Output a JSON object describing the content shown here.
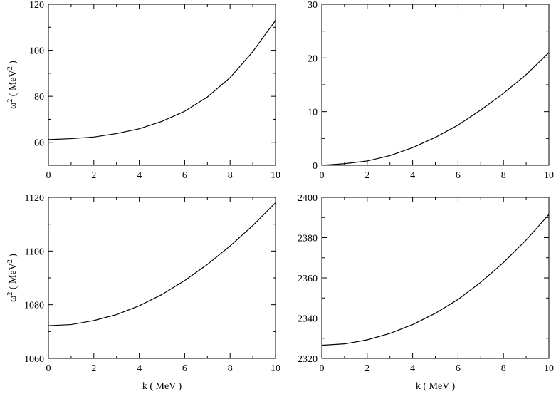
{
  "chart_data": [
    {
      "type": "line",
      "xlabel": "",
      "ylabel_main": "ω",
      "ylabel_sup": "2",
      "ylabel_unit_open": "( MeV",
      "ylabel_unit_sup": "2",
      "ylabel_unit_close": ")",
      "xlim": [
        0,
        10
      ],
      "ylim": [
        50,
        120
      ],
      "xticks": [
        "0",
        "2",
        "4",
        "6",
        "8",
        "10"
      ],
      "yticks": [
        "60",
        "80",
        "100",
        "120"
      ],
      "ytick_values": [
        60,
        80,
        100,
        120
      ],
      "series": [
        {
          "x": [
            0,
            1,
            2,
            3,
            4,
            5,
            6,
            7,
            8,
            9,
            10
          ],
          "y": [
            61.2,
            61.6,
            62.3,
            63.8,
            65.9,
            69.1,
            73.5,
            79.7,
            88.1,
            99.4,
            113.0
          ]
        }
      ]
    },
    {
      "type": "line",
      "xlabel": "",
      "ylabel_main": "",
      "xlim": [
        0,
        10
      ],
      "ylim": [
        0,
        30
      ],
      "xticks": [
        "0",
        "2",
        "4",
        "6",
        "8",
        "10"
      ],
      "yticks": [
        "0",
        "10",
        "20",
        "30"
      ],
      "ytick_values": [
        0,
        10,
        20,
        30
      ],
      "series": [
        {
          "x": [
            0,
            1,
            2,
            3,
            4,
            5,
            6,
            7,
            8,
            9,
            10
          ],
          "y": [
            0,
            0.3,
            0.8,
            1.8,
            3.3,
            5.2,
            7.5,
            10.3,
            13.4,
            16.9,
            21.0
          ]
        }
      ]
    },
    {
      "type": "line",
      "xlabel": "k ( MeV )",
      "ylabel_main": "ω",
      "ylabel_sup": "2",
      "ylabel_unit_open": "( MeV",
      "ylabel_unit_sup": "2",
      "ylabel_unit_close": ")",
      "xlim": [
        0,
        10
      ],
      "ylim": [
        1060,
        1120
      ],
      "xticks": [
        "0",
        "2",
        "4",
        "6",
        "8",
        "10"
      ],
      "yticks": [
        "1060",
        "1080",
        "1100",
        "1120"
      ],
      "ytick_values": [
        1060,
        1080,
        1100,
        1120
      ],
      "series": [
        {
          "x": [
            0,
            1,
            2,
            3,
            4,
            5,
            6,
            7,
            8,
            9,
            10
          ],
          "y": [
            1072.2,
            1072.6,
            1074.1,
            1076.3,
            1079.6,
            1083.8,
            1089.0,
            1095.0,
            1101.9,
            1109.5,
            1118.0
          ]
        }
      ]
    },
    {
      "type": "line",
      "xlabel": "k ( MeV )",
      "ylabel_main": "",
      "xlim": [
        0,
        10
      ],
      "ylim": [
        2320,
        2400
      ],
      "xticks": [
        "0",
        "2",
        "4",
        "6",
        "8",
        "10"
      ],
      "yticks": [
        "2320",
        "2340",
        "2360",
        "2380",
        "2400"
      ],
      "ytick_values": [
        2320,
        2340,
        2360,
        2380,
        2400
      ],
      "series": [
        {
          "x": [
            0,
            1,
            2,
            3,
            4,
            5,
            6,
            7,
            8,
            9,
            10
          ],
          "y": [
            2326.5,
            2327.2,
            2329.2,
            2332.4,
            2336.8,
            2342.4,
            2349.3,
            2357.8,
            2367.6,
            2378.8,
            2391.5
          ]
        }
      ]
    }
  ]
}
